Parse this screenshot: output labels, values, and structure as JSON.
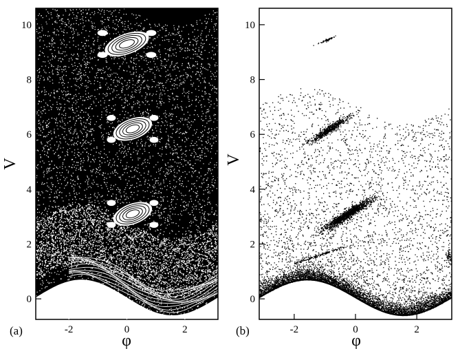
{
  "chart_data": [
    {
      "type": "scatter",
      "panel_label": "(a)",
      "xlabel": "φ",
      "ylabel": "V",
      "xlim": [
        -3.14159,
        3.14159
      ],
      "ylim": [
        -0.75,
        10.6
      ],
      "x_ticks": [
        -2,
        0,
        2
      ],
      "x_tick_labels": [
        "-2",
        "0",
        "2"
      ],
      "y_ticks": [
        0,
        2,
        4,
        6,
        8,
        10
      ],
      "y_tick_labels": [
        "0",
        "2",
        "4",
        "6",
        "8",
        "10"
      ],
      "grid": false,
      "legend": "none",
      "background": "#000000",
      "marker_color": "#ffffff",
      "description_of_regions": {
        "chaotic_sea": "dense points filling 0.5 < V < 10.6",
        "boundary_curve": "V = 0.65*sin(-phi) + 0.05 approx (lower edge, white below)",
        "resonance_islands": [
          {
            "center": [
              0.0,
              9.3
            ],
            "width_phi": 1.6,
            "height_V": 1.0,
            "satellites": 4
          },
          {
            "center": [
              0.2,
              6.2
            ],
            "width_phi": 1.4,
            "height_V": 1.0,
            "satellites": 4
          },
          {
            "center": [
              0.2,
              3.1
            ],
            "width_phi": 1.4,
            "height_V": 1.0,
            "satellites": 4
          }
        ],
        "low_energy_invariant_curves": {
          "V_range": [
            0.1,
            0.9
          ],
          "phi_range": [
            -2.0,
            3.14
          ]
        }
      }
    },
    {
      "type": "scatter",
      "panel_label": "(b)",
      "xlabel": "φ",
      "ylabel": "V",
      "xlim": [
        -3.14159,
        3.14159
      ],
      "ylim": [
        -0.75,
        10.6
      ],
      "x_ticks": [
        -2,
        0,
        2
      ],
      "x_tick_labels": [
        "-2",
        "0",
        "2"
      ],
      "y_ticks": [
        0,
        2,
        4,
        6,
        8,
        10
      ],
      "y_tick_labels": [
        "0",
        "2",
        "4",
        "6",
        "8",
        "10"
      ],
      "grid": false,
      "legend": "none",
      "background": "#ffffff",
      "marker_color": "#000000",
      "description_of_regions": {
        "sparse_points": "scattered points, density decreasing with V up to ~7",
        "boundary_band": "dense band just above V = 0.65*sin(-phi)",
        "clusters": [
          {
            "center": [
              -0.25,
              3.1
            ],
            "spread_phi": 0.35,
            "spread_V": 0.35
          },
          {
            "center": [
              -0.85,
              6.2
            ],
            "spread_phi": 0.3,
            "spread_V": 0.3
          },
          {
            "center": [
              -0.95,
              9.45
            ],
            "spread_phi": 0.12,
            "spread_V": 0.08
          }
        ],
        "streak": {
          "from": [
            -2.0,
            1.3
          ],
          "to": [
            -0.4,
            1.9
          ]
        },
        "edge_cluster": {
          "center": [
            3.05,
            1.55
          ]
        }
      }
    }
  ]
}
